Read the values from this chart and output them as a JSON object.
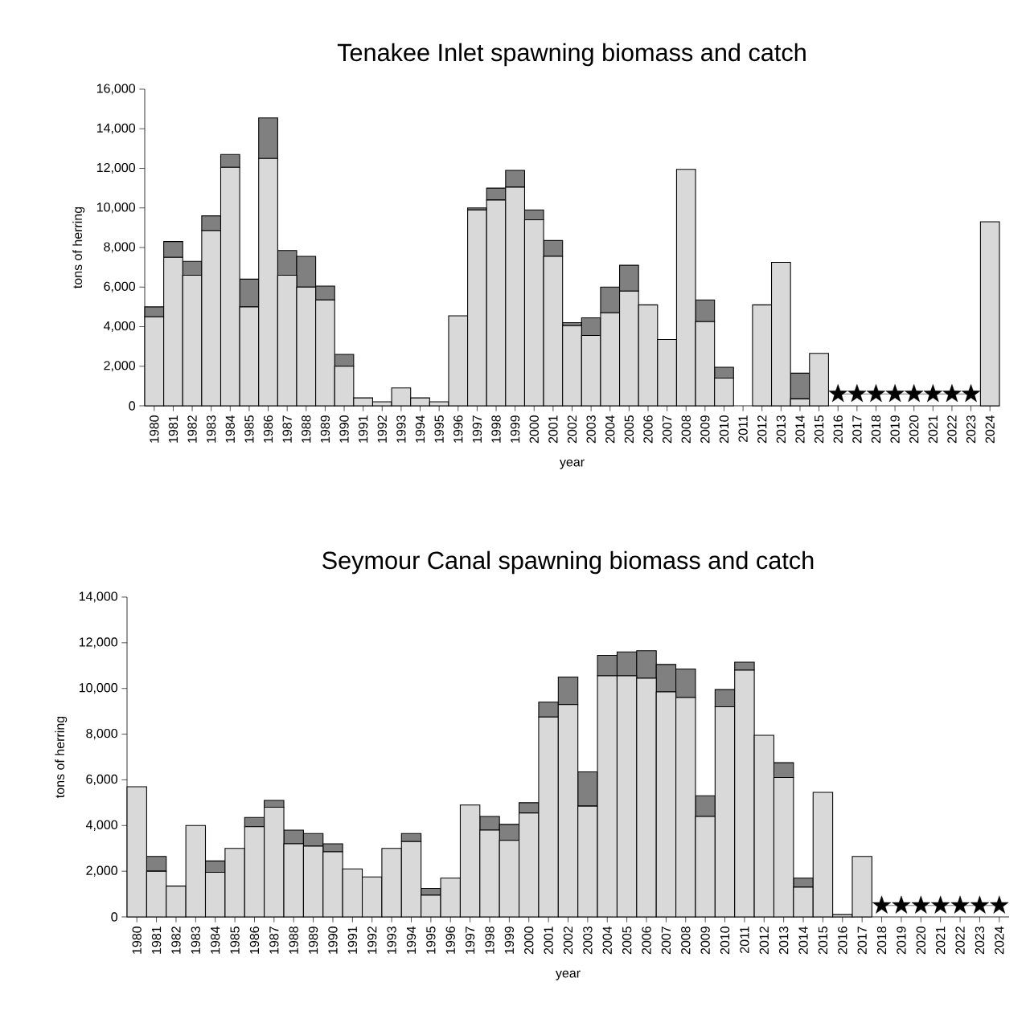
{
  "chart_data": [
    {
      "type": "bar",
      "title": "Tenakee Inlet spawning biomass and catch",
      "xlabel": "year",
      "ylabel": "tons of herring",
      "stacked": true,
      "categories": [
        "1980",
        "1981",
        "1982",
        "1983",
        "1984",
        "1985",
        "1986",
        "1987",
        "1988",
        "1989",
        "1990",
        "1991",
        "1992",
        "1993",
        "1994",
        "1995",
        "1996",
        "1997",
        "1998",
        "1999",
        "2000",
        "2001",
        "2002",
        "2003",
        "2004",
        "2005",
        "2006",
        "2007",
        "2008",
        "2009",
        "2010",
        "2011",
        "2012",
        "2013",
        "2014",
        "2015",
        "2016",
        "2017",
        "2018",
        "2019",
        "2020",
        "2021",
        "2022",
        "2023",
        "2024"
      ],
      "ylim": [
        0,
        16000
      ],
      "yticks": [
        0,
        {
          "value": 2000,
          "label": "2,000"
        },
        {
          "value": 4000,
          "label": "4,000"
        },
        {
          "value": 6000,
          "label": "6,000"
        },
        {
          "value": 8000,
          "label": "8,000"
        },
        {
          "value": 10000,
          "label": "10,000"
        },
        {
          "value": 12000,
          "label": "12,000"
        },
        {
          "value": 14000,
          "label": "14,000"
        },
        {
          "value": 16000,
          "label": "16,000"
        }
      ],
      "series": [
        {
          "color": "#d9d9d9",
          "values": [
            4500,
            7500,
            6600,
            8850,
            12050,
            5000,
            12500,
            6600,
            6000,
            5350,
            2000,
            400,
            200,
            900,
            400,
            200,
            4550,
            9900,
            10400,
            11050,
            9400,
            7550,
            4050,
            3550,
            4700,
            5800,
            5100,
            3350,
            11950,
            4250,
            1400,
            null,
            5100,
            7250,
            350,
            2650,
            null,
            null,
            null,
            null,
            null,
            null,
            null,
            null,
            9300
          ]
        },
        {
          "color": "#808080",
          "values": [
            500,
            800,
            700,
            750,
            650,
            1400,
            2050,
            1250,
            1550,
            700,
            600,
            null,
            null,
            null,
            null,
            null,
            null,
            100,
            600,
            850,
            500,
            800,
            150,
            900,
            1300,
            1300,
            null,
            null,
            null,
            1100,
            550,
            null,
            null,
            null,
            1300,
            null,
            null,
            null,
            null,
            null,
            null,
            null,
            null,
            null,
            null
          ]
        },
        {
          "type": "line",
          "marker": "star",
          "color": "#000000",
          "values": [
            null,
            null,
            null,
            null,
            null,
            null,
            null,
            null,
            null,
            null,
            null,
            null,
            null,
            null,
            null,
            null,
            null,
            null,
            null,
            null,
            null,
            null,
            null,
            null,
            null,
            null,
            null,
            null,
            null,
            null,
            null,
            null,
            null,
            null,
            null,
            null,
            600,
            600,
            600,
            600,
            600,
            600,
            600,
            600,
            null
          ]
        }
      ]
    },
    {
      "type": "bar",
      "title": "Seymour Canal spawning biomass and catch",
      "xlabel": "year",
      "ylabel": "tons of herring",
      "stacked": true,
      "categories": [
        "1980",
        "1981",
        "1982",
        "1983",
        "1984",
        "1985",
        "1986",
        "1987",
        "1988",
        "1989",
        "1990",
        "1991",
        "1992",
        "1993",
        "1994",
        "1995",
        "1996",
        "1997",
        "1998",
        "1999",
        "2000",
        "2001",
        "2002",
        "2003",
        "2004",
        "2005",
        "2006",
        "2007",
        "2008",
        "2009",
        "2010",
        "2011",
        "2012",
        "2013",
        "2014",
        "2015",
        "2016",
        "2017",
        "2018",
        "2019",
        "2020",
        "2021",
        "2022",
        "2023",
        "2024"
      ],
      "ylim": [
        0,
        14000
      ],
      "yticks": [
        0,
        {
          "value": 2000,
          "label": "2,000"
        },
        {
          "value": 4000,
          "label": "4,000"
        },
        {
          "value": 6000,
          "label": "6,000"
        },
        {
          "value": 8000,
          "label": "8,000"
        },
        {
          "value": 10000,
          "label": "10,000"
        },
        {
          "value": 12000,
          "label": "12,000"
        },
        {
          "value": 14000,
          "label": "14,000"
        }
      ],
      "series": [
        {
          "color": "#d9d9d9",
          "values": [
            5700,
            2000,
            1350,
            4000,
            1950,
            3000,
            3950,
            4800,
            3200,
            3100,
            2850,
            2100,
            1750,
            3000,
            3300,
            950,
            1700,
            4900,
            3800,
            3350,
            4550,
            8750,
            9300,
            4850,
            10550,
            10550,
            10450,
            9850,
            9600,
            4400,
            9200,
            10800,
            7950,
            6100,
            1300,
            5450,
            100,
            2650,
            null,
            null,
            null,
            null,
            null,
            null,
            null
          ]
        },
        {
          "color": "#808080",
          "values": [
            null,
            650,
            null,
            null,
            500,
            null,
            400,
            300,
            600,
            550,
            350,
            null,
            null,
            null,
            350,
            300,
            null,
            null,
            600,
            700,
            450,
            650,
            1200,
            1500,
            900,
            1050,
            1200,
            1200,
            1250,
            900,
            750,
            350,
            null,
            650,
            400,
            null,
            null,
            null,
            null,
            null,
            null,
            null,
            null,
            null,
            null
          ]
        },
        {
          "type": "line",
          "marker": "star",
          "color": "#000000",
          "values": [
            null,
            null,
            null,
            null,
            null,
            null,
            null,
            null,
            null,
            null,
            null,
            null,
            null,
            null,
            null,
            null,
            null,
            null,
            null,
            null,
            null,
            null,
            null,
            null,
            null,
            null,
            null,
            null,
            null,
            null,
            null,
            null,
            null,
            null,
            null,
            null,
            null,
            null,
            500,
            500,
            500,
            500,
            500,
            500,
            500
          ]
        }
      ]
    }
  ]
}
